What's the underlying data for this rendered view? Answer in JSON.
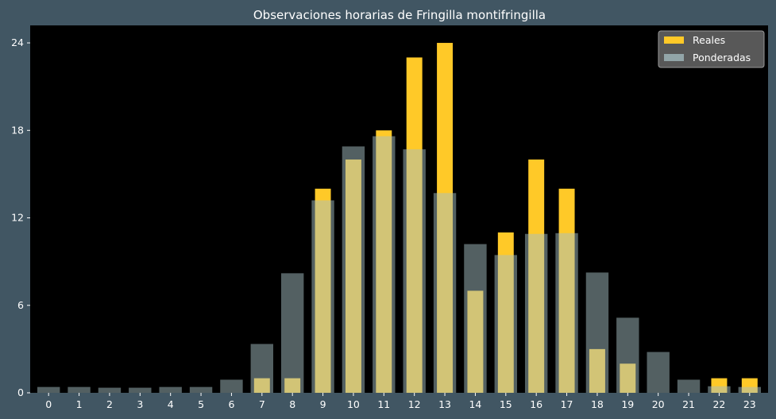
{
  "chart_data": {
    "type": "bar",
    "title": "Observaciones horarias de Fringilla montifringilla",
    "xlabel": "",
    "ylabel": "",
    "categories": [
      "0",
      "1",
      "2",
      "3",
      "4",
      "5",
      "6",
      "7",
      "8",
      "9",
      "10",
      "11",
      "12",
      "13",
      "14",
      "15",
      "16",
      "17",
      "18",
      "19",
      "20",
      "21",
      "22",
      "23"
    ],
    "yticks": [
      0,
      6,
      12,
      18,
      24
    ],
    "ylim": [
      0,
      25.2
    ],
    "grid": false,
    "legend_position": "top-right",
    "series": [
      {
        "name": "Reales",
        "color": "#ffc928",
        "values": [
          0,
          0,
          0,
          0,
          0,
          0,
          0,
          1,
          1,
          14,
          16,
          18,
          23,
          24,
          7,
          11,
          16,
          14,
          3,
          2,
          0,
          0,
          1,
          1
        ]
      },
      {
        "name": "Ponderadas",
        "color": "#a5bfc3",
        "values": [
          0.4,
          0.4,
          0.35,
          0.35,
          0.4,
          0.4,
          0.9,
          3.35,
          8.2,
          13.2,
          16.9,
          17.6,
          16.7,
          13.7,
          10.2,
          9.45,
          10.9,
          10.95,
          8.25,
          5.15,
          2.8,
          0.9,
          0.45,
          0.4
        ]
      }
    ]
  }
}
